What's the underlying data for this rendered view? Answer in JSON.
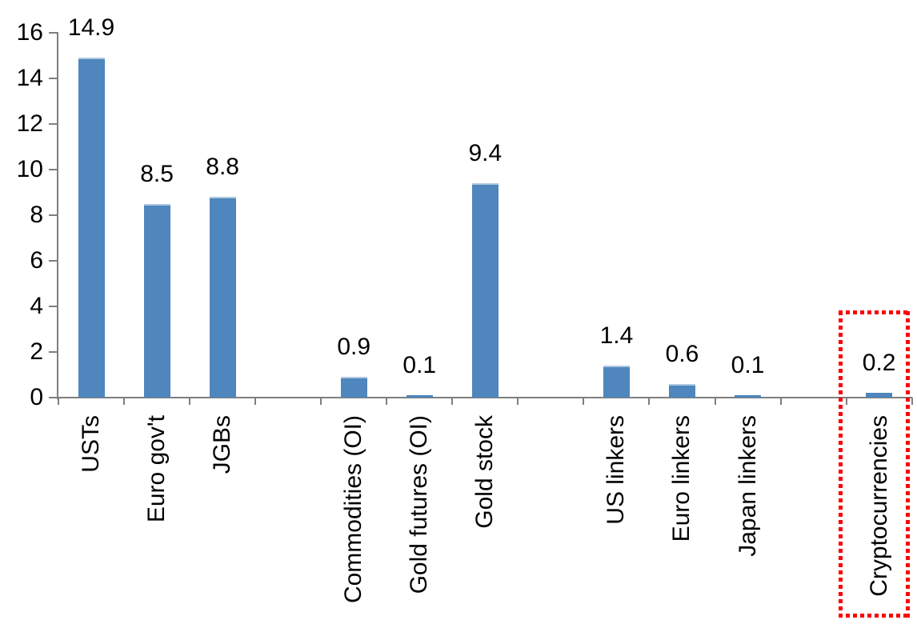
{
  "chart_data": {
    "type": "bar",
    "title": "",
    "xlabel": "",
    "ylabel": "",
    "legend": "none",
    "grid": "off",
    "categories": [
      "USTs",
      "Euro gov't",
      "JGBs",
      "Commodities (OI)",
      "Gold futures (OI)",
      "Gold stock",
      "US linkers",
      "Euro linkers",
      "Japan linkers",
      "Cryptocurrencies"
    ],
    "values": [
      14.9,
      8.5,
      8.8,
      0.9,
      0.1,
      9.4,
      1.4,
      0.6,
      0.1,
      0.2
    ],
    "value_label_format": "one-decimal",
    "groups": [
      {
        "items": [
          {
            "label": "USTs",
            "value": 14.9
          },
          {
            "label": "Euro gov't",
            "value": 8.5
          },
          {
            "label": "JGBs",
            "value": 8.8
          }
        ]
      },
      {
        "items": [
          {
            "label": "Commodities (OI)",
            "value": 0.9
          },
          {
            "label": "Gold futures (OI)",
            "value": 0.1
          },
          {
            "label": "Gold stock",
            "value": 9.4
          }
        ]
      },
      {
        "items": [
          {
            "label": "US linkers",
            "value": 1.4
          },
          {
            "label": "Euro linkers",
            "value": 0.6
          },
          {
            "label": "Japan linkers",
            "value": 0.1
          }
        ]
      },
      {
        "items": [
          {
            "label": "Cryptocurrencies",
            "value": 0.2
          }
        ]
      }
    ],
    "group_layout": "one empty category slot between groups",
    "y_axis": {
      "min": 0,
      "max": 16,
      "tick_step": 2,
      "ticks": [
        0,
        2,
        4,
        6,
        8,
        10,
        12,
        14,
        16
      ]
    },
    "annotation": {
      "type": "highlight-box",
      "target": "Cryptocurrencies",
      "border_color": "#FF0000",
      "border_style": "dotted"
    },
    "colors": {
      "bar": "#4E86BD",
      "bar_top_edge": "#AFC9E2",
      "axis": "#7F7F7F",
      "text": "#000000",
      "highlight_box": "#FF0000"
    }
  }
}
